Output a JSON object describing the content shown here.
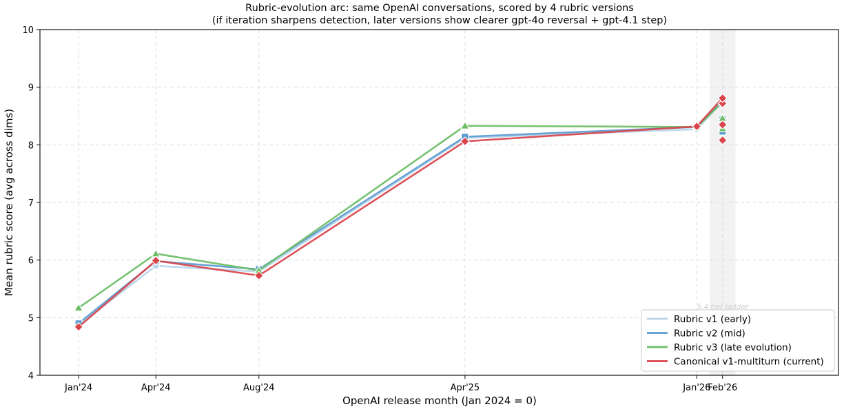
{
  "chart_data": {
    "type": "line",
    "title": "Rubric-evolution arc: same OpenAI conversations, scored by 4 rubric versions",
    "subtitle": "(if iteration sharpens detection, later versions show clearer gpt-4o reversal + gpt-4.1 step)",
    "xlabel": "OpenAI release month (Jan 2024 = 0)",
    "ylabel": "Mean rubric score (avg across dims)",
    "xlim": [
      -1.5,
      29.5
    ],
    "ylim": [
      4,
      10
    ],
    "grid": true,
    "legend_position": "lower-right",
    "x_ticks": [
      {
        "value": 0,
        "label": "Jan'24"
      },
      {
        "value": 3,
        "label": "Apr'24"
      },
      {
        "value": 7,
        "label": "Aug'24"
      },
      {
        "value": 15,
        "label": "Apr'25"
      },
      {
        "value": 24,
        "label": "Jan'26"
      },
      {
        "value": 25,
        "label": "Feb'26"
      }
    ],
    "y_ticks": [
      4,
      5,
      6,
      7,
      8,
      9,
      10
    ],
    "shaded_band": {
      "x_range": [
        24.5,
        25.5
      ],
      "color": "#f2f2f2",
      "annotation": [
        "5.4 tier ladder",
        "(same time",
        "stamp)"
      ]
    },
    "series": [
      {
        "name": "Rubric v1 (early)",
        "color": "#b9d5ea",
        "marker": "circle",
        "x": [
          0,
          3,
          7,
          15,
          24,
          25
        ],
        "y": [
          4.87,
          5.9,
          5.8,
          8.12,
          8.27,
          8.75
        ],
        "extra_points": [
          {
            "x": 25,
            "y": 8.45
          },
          {
            "x": 25,
            "y": 8.25
          }
        ]
      },
      {
        "name": "Rubric v2 (mid)",
        "color": "#5b9bd0",
        "marker": "square",
        "x": [
          0,
          3,
          7,
          15,
          24,
          25
        ],
        "y": [
          4.9,
          5.98,
          5.84,
          8.14,
          8.31,
          8.78
        ],
        "extra_points": [
          {
            "x": 25,
            "y": 8.44
          },
          {
            "x": 25,
            "y": 8.23
          }
        ]
      },
      {
        "name": "Rubric v3 (late evolution)",
        "color": "#6bbd65",
        "marker": "triangle",
        "x": [
          0,
          3,
          7,
          15,
          24,
          25
        ],
        "y": [
          5.17,
          6.11,
          5.82,
          8.33,
          8.31,
          8.74
        ],
        "extra_points": [
          {
            "x": 25,
            "y": 8.46
          },
          {
            "x": 25,
            "y": 8.28
          }
        ]
      },
      {
        "name": "Canonical v1-multiturn (current)",
        "color": "#d9434a",
        "marker": "diamond",
        "x": [
          0,
          3,
          7,
          15,
          24,
          25
        ],
        "y": [
          4.84,
          5.99,
          5.73,
          8.06,
          8.32,
          8.81
        ],
        "extra_points": [
          {
            "x": 25,
            "y": 8.72
          },
          {
            "x": 25,
            "y": 8.35
          },
          {
            "x": 25,
            "y": 8.08
          }
        ]
      }
    ]
  }
}
